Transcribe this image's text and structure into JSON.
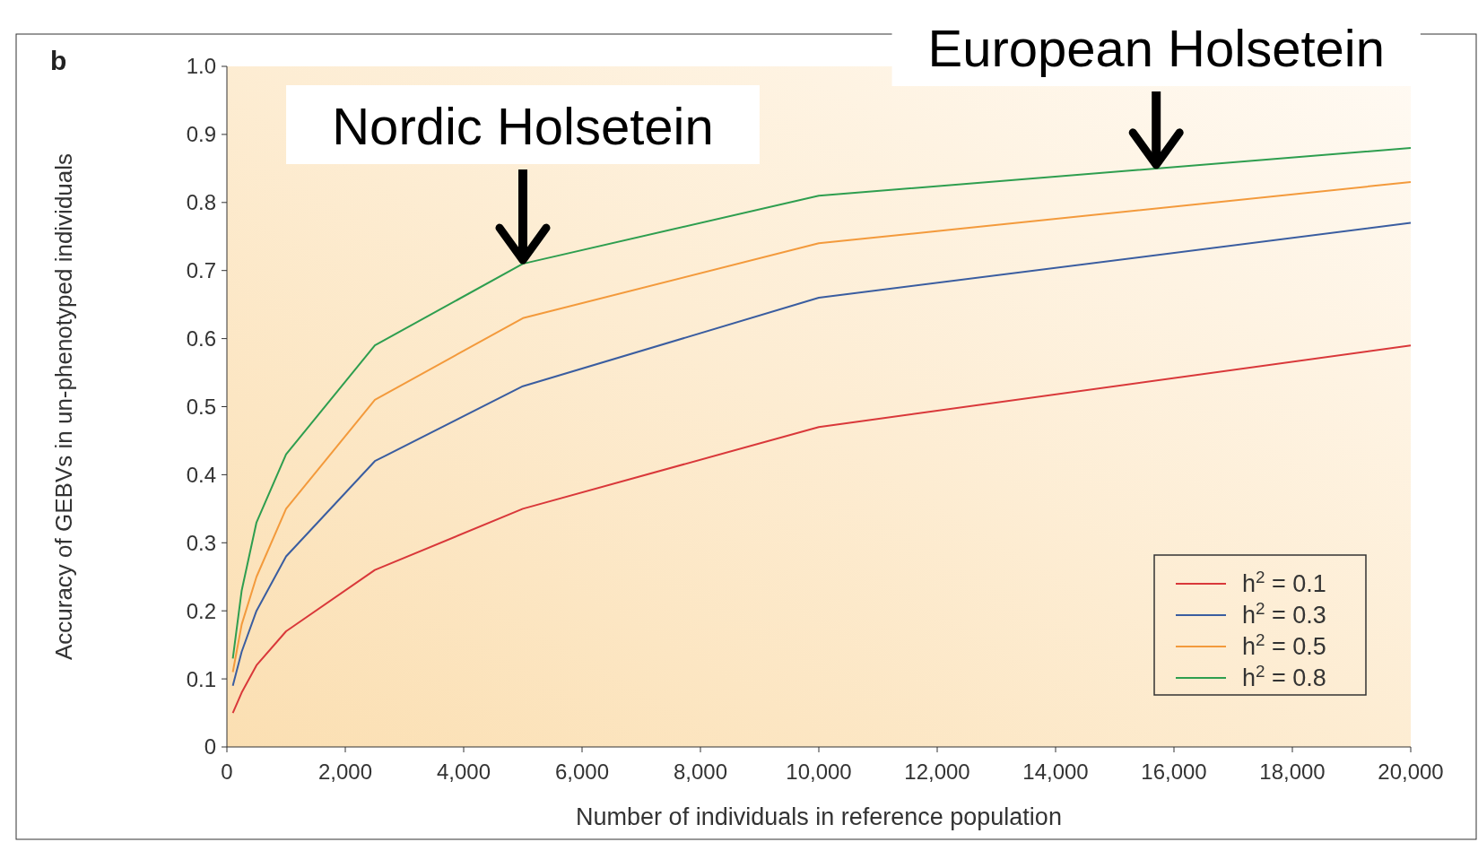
{
  "chart_data": {
    "type": "line",
    "xlabel": "Number of individuals in reference population",
    "ylabel": "Accuracy of GEBVs in un-phenotyped individuals",
    "x": [
      100,
      250,
      500,
      1000,
      2500,
      5000,
      10000,
      20000
    ],
    "series": [
      {
        "name": "h$^{2}$ = 0.1",
        "color": "#d9383a",
        "values": [
          0.05,
          0.08,
          0.12,
          0.17,
          0.26,
          0.35,
          0.47,
          0.59
        ]
      },
      {
        "name": "h$^{2}$ = 0.3",
        "color": "#3a5da0",
        "values": [
          0.09,
          0.14,
          0.2,
          0.28,
          0.42,
          0.53,
          0.66,
          0.77
        ]
      },
      {
        "name": "h$^{2}$ = 0.5",
        "color": "#f39a3c",
        "values": [
          0.11,
          0.18,
          0.25,
          0.35,
          0.51,
          0.63,
          0.74,
          0.83
        ]
      },
      {
        "name": "h$^{2}$ = 0.8",
        "color": "#2e9e4f",
        "values": [
          0.13,
          0.23,
          0.33,
          0.43,
          0.59,
          0.71,
          0.81,
          0.88
        ]
      }
    ],
    "xlim": [
      0,
      20000
    ],
    "xticks": [
      0,
      {
        "value": 2000,
        "label": "2,000"
      },
      {
        "value": 4000,
        "label": "4,000"
      },
      {
        "value": 6000,
        "label": "6,000"
      },
      {
        "value": 8000,
        "label": "8,000"
      },
      {
        "value": 10000,
        "label": "10,000"
      },
      {
        "value": 12000,
        "label": "12,000"
      },
      {
        "value": 14000,
        "label": "14,000"
      },
      {
        "value": 16000,
        "label": "16,000"
      },
      {
        "value": 18000,
        "label": "18,000"
      },
      {
        "value": 20000,
        "label": "20,000"
      }
    ],
    "ylim": [
      0,
      1
    ],
    "yticks": [
      0,
      0.1,
      0.2,
      0.3,
      0.4,
      0.5,
      0.6,
      0.7,
      0.8,
      0.9,
      {
        "value": 1,
        "label": "1.0"
      }
    ],
    "legend": "bottom right",
    "grid": false,
    "marker": "none",
    "line_style": "solid",
    "annotations": [
      "b",
      {
        "text": "Nordic Holsetein",
        "x": 5000,
        "y": 0.71
      },
      {
        "text": "European Holsetein",
        "x": 15700,
        "y": 0.85
      }
    ]
  }
}
